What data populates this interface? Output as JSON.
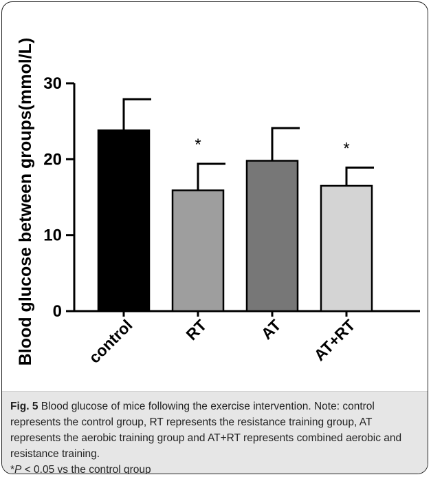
{
  "chart_data": {
    "type": "bar",
    "categories": [
      "control",
      "RT",
      "AT",
      "AT+RT"
    ],
    "values": [
      23.8,
      15.9,
      19.8,
      16.5
    ],
    "errors": [
      4.1,
      3.5,
      4.3,
      2.4
    ],
    "bar_colors": [
      "#000000",
      "#9e9e9e",
      "#777777",
      "#d4d4d4"
    ],
    "significance": [
      "",
      "*",
      "",
      "*"
    ],
    "ylabel": "Blood glucose between groups(mmol/L)",
    "ylim": [
      0,
      30
    ],
    "yticks": [
      "0",
      "10",
      "20",
      "30"
    ],
    "grid": false
  },
  "caption": {
    "label": "Fig. 5",
    "title": " Blood glucose of mice following the exercise intervention.",
    "note": "Note: control represents the control group, RT represents the resistance training group, AT represents the aerobic training group and AT+RT represents combined aerobic and resistance training.",
    "pvalue_prefix": "*",
    "pvalue_p": "P",
    "pvalue_rest": " < 0.05 vs the control group"
  }
}
